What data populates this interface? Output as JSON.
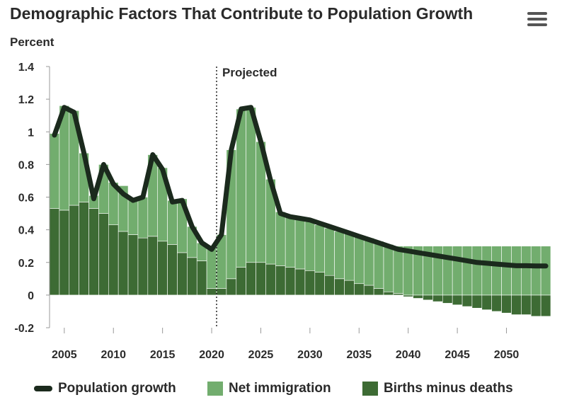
{
  "chart_data": {
    "type": "bar",
    "title": "Demographic Factors That Contribute to Population Growth",
    "ylabel": "Percent",
    "xlabel": "",
    "ylim": [
      -0.2,
      1.4
    ],
    "yticks": [
      "1.4",
      "1.2",
      "1",
      "0.8",
      "0.6",
      "0.4",
      "0.2",
      "0",
      "-0.2"
    ],
    "ytick_values": [
      1.4,
      1.2,
      1.0,
      0.8,
      0.6,
      0.4,
      0.2,
      0.0,
      -0.2
    ],
    "xticks": [
      "2005",
      "2010",
      "2015",
      "2020",
      "2025",
      "2030",
      "2035",
      "2040",
      "2045",
      "2050"
    ],
    "xtick_values": [
      2005,
      2010,
      2015,
      2020,
      2025,
      2030,
      2035,
      2040,
      2045,
      2050
    ],
    "annotation": {
      "label": "Projected",
      "x": 2020.5
    },
    "colors": {
      "net_immigration": "#72ad6e",
      "births_minus_deaths": "#3d6b34",
      "population_growth": "#1b2a1d"
    },
    "years": [
      2004,
      2005,
      2006,
      2007,
      2008,
      2009,
      2010,
      2011,
      2012,
      2013,
      2014,
      2015,
      2016,
      2017,
      2018,
      2019,
      2020,
      2021,
      2022,
      2023,
      2024,
      2025,
      2026,
      2027,
      2028,
      2029,
      2030,
      2031,
      2032,
      2033,
      2034,
      2035,
      2036,
      2037,
      2038,
      2039,
      2040,
      2041,
      2042,
      2043,
      2044,
      2045,
      2046,
      2047,
      2048,
      2049,
      2050,
      2051,
      2052,
      2053,
      2054
    ],
    "series": [
      {
        "name": "Births minus deaths",
        "stack": true,
        "values": [
          0.53,
          0.52,
          0.55,
          0.57,
          0.53,
          0.5,
          0.43,
          0.39,
          0.37,
          0.35,
          0.36,
          0.33,
          0.31,
          0.26,
          0.23,
          0.21,
          0.04,
          0.04,
          0.1,
          0.17,
          0.2,
          0.2,
          0.19,
          0.18,
          0.17,
          0.16,
          0.15,
          0.14,
          0.12,
          0.1,
          0.09,
          0.07,
          0.06,
          0.04,
          0.02,
          0.01,
          -0.01,
          -0.02,
          -0.03,
          -0.04,
          -0.05,
          -0.06,
          -0.07,
          -0.08,
          -0.09,
          -0.1,
          -0.11,
          -0.12,
          -0.12,
          -0.13,
          -0.13
        ]
      },
      {
        "name": "Net immigration",
        "stack": true,
        "values": [
          0.46,
          0.64,
          0.58,
          0.3,
          0.08,
          0.3,
          0.26,
          0.28,
          0.22,
          0.25,
          0.5,
          0.45,
          0.27,
          0.33,
          0.19,
          0.11,
          0.25,
          0.33,
          0.79,
          0.97,
          0.95,
          0.74,
          0.52,
          0.33,
          0.31,
          0.31,
          0.3,
          0.29,
          0.29,
          0.29,
          0.29,
          0.29,
          0.29,
          0.29,
          0.29,
          0.29,
          0.3,
          0.3,
          0.3,
          0.3,
          0.3,
          0.3,
          0.3,
          0.3,
          0.3,
          0.3,
          0.3,
          0.3,
          0.3,
          0.3,
          0.3
        ]
      },
      {
        "name": "Population growth",
        "type": "line",
        "values": [
          0.98,
          1.15,
          1.12,
          0.87,
          0.59,
          0.8,
          0.68,
          0.62,
          0.58,
          0.6,
          0.86,
          0.77,
          0.57,
          0.58,
          0.42,
          0.32,
          0.28,
          0.37,
          0.89,
          1.14,
          1.15,
          0.94,
          0.7,
          0.5,
          0.48,
          0.47,
          0.46,
          0.44,
          0.42,
          0.4,
          0.38,
          0.36,
          0.34,
          0.32,
          0.3,
          0.28,
          0.27,
          0.26,
          0.25,
          0.24,
          0.23,
          0.22,
          0.21,
          0.2,
          0.195,
          0.19,
          0.185,
          0.18,
          0.18,
          0.178,
          0.178
        ]
      }
    ],
    "legend": [
      {
        "name": "Population growth",
        "marker": "line"
      },
      {
        "name": "Net immigration",
        "marker": "box"
      },
      {
        "name": "Births minus deaths",
        "marker": "box"
      }
    ],
    "legend_position": "bottom",
    "grid": false
  }
}
